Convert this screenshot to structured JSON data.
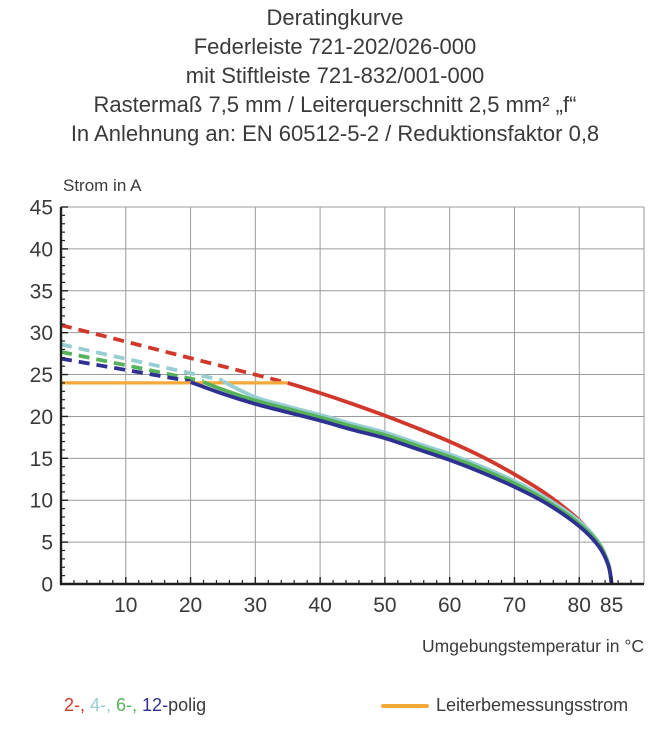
{
  "header": {
    "lines": [
      "Deratingkurve",
      "Federleiste 721-202/026-000",
      "mit Stiftleiste 721-832/001-000",
      "Rastermaß 7,5 mm / Leiterquerschnitt 2,5 mm² „f“",
      "In Anlehnung an: EN 60512-5-2 / Reduktionsfaktor 0,8"
    ]
  },
  "colors": {
    "red": "#d0382b",
    "cyan": "#97ced3",
    "green": "#56b259",
    "blue": "#2e3192",
    "orange": "#f4a83a",
    "grid": "#9a9a9a",
    "axis": "#1f1f1f",
    "text": "#3a3a3a"
  },
  "chart_data": {
    "type": "line",
    "title": "Deratingkurve",
    "ylabel": "Strom in A",
    "xlabel": "Umgebungstemperatur in °C",
    "xlim": [
      0,
      90
    ],
    "ylim": [
      0,
      45
    ],
    "x_major_ticks": [
      10,
      20,
      30,
      40,
      50,
      60,
      70,
      80,
      85
    ],
    "x_minor_step": 2,
    "y_major_ticks": [
      0,
      5,
      10,
      15,
      20,
      25,
      30,
      35,
      40,
      45
    ],
    "y_minor_step": 1,
    "grid": {
      "x_step": 10,
      "y_step": 5,
      "color": "#9a9a9a"
    },
    "rated_line": {
      "name": "Leiterbemessungsstrom",
      "color": "#f4a83a",
      "value_A": 24,
      "points": [
        [
          0,
          24
        ],
        [
          35,
          24
        ]
      ]
    },
    "series": [
      {
        "name": "2-polig",
        "color": "#d0382b",
        "dashed_points": [
          [
            0,
            30.9
          ],
          [
            35,
            24
          ]
        ],
        "solid_points": [
          [
            35,
            24
          ],
          [
            40,
            22.8
          ],
          [
            45,
            21.5
          ],
          [
            50,
            20.1
          ],
          [
            55,
            18.6
          ],
          [
            60,
            17.0
          ],
          [
            65,
            15.2
          ],
          [
            70,
            13.1
          ],
          [
            75,
            10.7
          ],
          [
            80,
            7.6
          ],
          [
            83,
            4.8
          ],
          [
            84.5,
            2.4
          ],
          [
            85,
            0
          ]
        ]
      },
      {
        "name": "4-polig",
        "color": "#97ced3",
        "dashed_points": [
          [
            0,
            28.6
          ],
          [
            25,
            24.3
          ]
        ],
        "solid_points": [
          [
            25,
            24.2
          ],
          [
            30,
            22.3
          ],
          [
            35,
            21.2
          ],
          [
            40,
            20.2
          ],
          [
            45,
            19.1
          ],
          [
            50,
            18.1
          ],
          [
            55,
            16.8
          ],
          [
            60,
            15.5
          ],
          [
            65,
            14.0
          ],
          [
            70,
            12.3
          ],
          [
            75,
            10.2
          ],
          [
            80,
            7.5
          ],
          [
            83,
            5.0
          ],
          [
            84.5,
            2.4
          ],
          [
            85,
            0
          ]
        ]
      },
      {
        "name": "6-polig",
        "color": "#56b259",
        "dashed_points": [
          [
            0,
            27.7
          ],
          [
            22,
            24.2
          ]
        ],
        "solid_points": [
          [
            22,
            24.1
          ],
          [
            25,
            23.2
          ],
          [
            30,
            21.9
          ],
          [
            35,
            20.9
          ],
          [
            40,
            19.9
          ],
          [
            45,
            18.8
          ],
          [
            50,
            17.8
          ],
          [
            55,
            16.5
          ],
          [
            60,
            15.2
          ],
          [
            65,
            13.7
          ],
          [
            70,
            12.0
          ],
          [
            75,
            9.9
          ],
          [
            80,
            7.2
          ],
          [
            83,
            4.8
          ],
          [
            84.5,
            2.3
          ],
          [
            85,
            0
          ]
        ]
      },
      {
        "name": "12-polig",
        "color": "#2e3192",
        "dashed_points": [
          [
            0,
            26.9
          ],
          [
            20,
            24.2
          ]
        ],
        "solid_points": [
          [
            20,
            24.1
          ],
          [
            25,
            22.7
          ],
          [
            30,
            21.5
          ],
          [
            35,
            20.5
          ],
          [
            40,
            19.5
          ],
          [
            45,
            18.4
          ],
          [
            50,
            17.4
          ],
          [
            55,
            16.1
          ],
          [
            60,
            14.8
          ],
          [
            65,
            13.3
          ],
          [
            70,
            11.6
          ],
          [
            75,
            9.6
          ],
          [
            80,
            6.9
          ],
          [
            83,
            4.5
          ],
          [
            84.5,
            2.2
          ],
          [
            85,
            0
          ]
        ]
      }
    ]
  },
  "legend": {
    "poles": [
      {
        "label": "2-,",
        "color": "#d0382b"
      },
      {
        "label": "4-,",
        "color": "#97ced3"
      },
      {
        "label": "6-,",
        "color": "#56b259"
      },
      {
        "label": "12-",
        "color": "#2e3192"
      }
    ],
    "suffix": "polig",
    "rated_label": "Leiterbemessungsstrom",
    "rated_color": "#f4a83a"
  }
}
